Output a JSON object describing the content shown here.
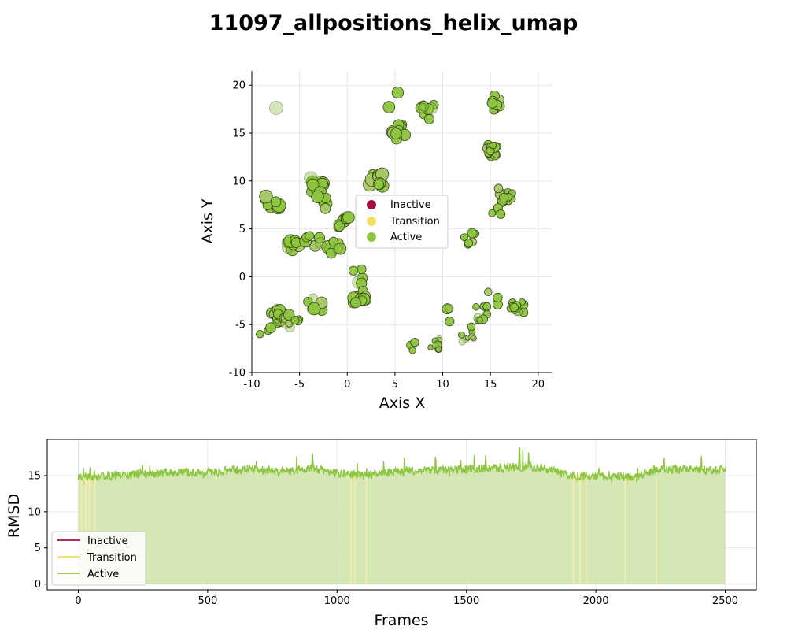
{
  "title": "11097_allpositions_helix_umap",
  "colors": {
    "inactive": "#A50F3F",
    "transition": "#F0E060",
    "active": "#8DC63F",
    "active_edge": "#2E3B10",
    "grid": "#E6E6E6"
  },
  "chart_data": [
    {
      "type": "scatter",
      "xlabel": "Axis X",
      "ylabel": "Axis Y",
      "xlim": [
        -10,
        21.5
      ],
      "ylim": [
        -10,
        21.5
      ],
      "xticks": [
        -10,
        -5,
        0,
        5,
        10,
        15,
        20
      ],
      "yticks": [
        -10,
        -5,
        0,
        5,
        10,
        15,
        20
      ],
      "grid": true,
      "legend_position": "center",
      "legend": [
        "Inactive",
        "Transition",
        "Active"
      ],
      "clusters": [
        {
          "cx": -6.8,
          "cy": 17.1,
          "n": 1
        },
        {
          "cx": -7.8,
          "cy": 7.7,
          "n": 8
        },
        {
          "cx": -5.8,
          "cy": 3.5,
          "n": 10
        },
        {
          "cx": -3.6,
          "cy": 3.8,
          "n": 6
        },
        {
          "cx": -3.2,
          "cy": 9.5,
          "n": 14
        },
        {
          "cx": -2.4,
          "cy": 7.6,
          "n": 6
        },
        {
          "cx": -1.2,
          "cy": 3.1,
          "n": 8
        },
        {
          "cx": -0.2,
          "cy": 6.0,
          "n": 8
        },
        {
          "cx": 0.8,
          "cy": 0.0,
          "n": 5
        },
        {
          "cx": 1.2,
          "cy": -2.1,
          "n": 10
        },
        {
          "cx": -7.2,
          "cy": -4.2,
          "n": 14
        },
        {
          "cx": -5.8,
          "cy": -4.7,
          "n": 8
        },
        {
          "cx": -3.4,
          "cy": -3.0,
          "n": 10
        },
        {
          "cx": -8.5,
          "cy": -6.0,
          "n": 3
        },
        {
          "cx": 3.0,
          "cy": 10.0,
          "n": 12
        },
        {
          "cx": 4.6,
          "cy": 18.5,
          "n": 2
        },
        {
          "cx": 5.6,
          "cy": 15.2,
          "n": 10
        },
        {
          "cx": 8.5,
          "cy": 17.2,
          "n": 10
        },
        {
          "cx": 12.8,
          "cy": 4.1,
          "n": 6
        },
        {
          "cx": 15.5,
          "cy": 18.2,
          "n": 8
        },
        {
          "cx": 15.0,
          "cy": 13.0,
          "n": 14
        },
        {
          "cx": 16.5,
          "cy": 8.5,
          "n": 14
        },
        {
          "cx": 15.6,
          "cy": 6.6,
          "n": 4
        },
        {
          "cx": 17.8,
          "cy": -3.0,
          "n": 14
        },
        {
          "cx": 14.0,
          "cy": -3.8,
          "n": 8
        },
        {
          "cx": 10.0,
          "cy": -4.0,
          "n": 3
        },
        {
          "cx": 12.5,
          "cy": -6.0,
          "n": 8
        },
        {
          "cx": 9.0,
          "cy": -7.2,
          "n": 8
        },
        {
          "cx": 6.5,
          "cy": -7.4,
          "n": 3
        },
        {
          "cx": 15.2,
          "cy": -2.2,
          "n": 3
        }
      ]
    },
    {
      "type": "line",
      "xlabel": "Frames",
      "ylabel": "RMSD",
      "xlim": [
        -120,
        2620
      ],
      "ylim": [
        -0.8,
        20
      ],
      "xticks": [
        0,
        500,
        1000,
        1500,
        2000,
        2500
      ],
      "yticks": [
        0,
        5,
        10,
        15
      ],
      "grid": true,
      "legend_position": "lower left",
      "legend": [
        "Inactive",
        "Transition",
        "Active"
      ],
      "n_frames": 2500,
      "mean_rmsd": [
        {
          "frame": 0,
          "value": 14.6
        },
        {
          "frame": 100,
          "value": 15.0
        },
        {
          "frame": 250,
          "value": 15.2
        },
        {
          "frame": 400,
          "value": 15.5
        },
        {
          "frame": 500,
          "value": 15.3
        },
        {
          "frame": 650,
          "value": 15.9
        },
        {
          "frame": 800,
          "value": 15.6
        },
        {
          "frame": 900,
          "value": 16.0
        },
        {
          "frame": 1000,
          "value": 15.3
        },
        {
          "frame": 1100,
          "value": 15.0
        },
        {
          "frame": 1250,
          "value": 15.6
        },
        {
          "frame": 1400,
          "value": 15.8
        },
        {
          "frame": 1550,
          "value": 15.9
        },
        {
          "frame": 1700,
          "value": 16.2
        },
        {
          "frame": 1800,
          "value": 16.0
        },
        {
          "frame": 1900,
          "value": 15.0
        },
        {
          "frame": 2000,
          "value": 14.9
        },
        {
          "frame": 2150,
          "value": 14.8
        },
        {
          "frame": 2250,
          "value": 15.9
        },
        {
          "frame": 2400,
          "value": 15.8
        },
        {
          "frame": 2500,
          "value": 15.6
        }
      ],
      "peaks": [
        {
          "frame": 1705,
          "value": 18.8
        },
        {
          "frame": 1718,
          "value": 18.6
        },
        {
          "frame": 905,
          "value": 18.0
        },
        {
          "frame": 1740,
          "value": 18.2
        },
        {
          "frame": 1530,
          "value": 17.8
        },
        {
          "frame": 1260,
          "value": 17.5
        }
      ]
    }
  ]
}
